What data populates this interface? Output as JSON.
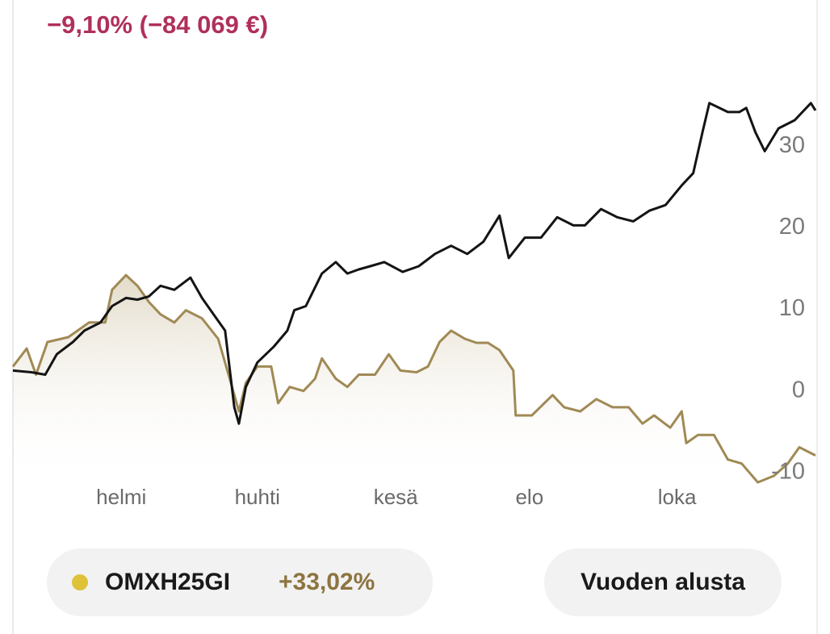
{
  "header": {
    "change": "−9,10% (−84 069 €)"
  },
  "chart_data": {
    "type": "line",
    "xlim": [
      0,
      348
    ],
    "ylim": [
      -11.5,
      42
    ],
    "xticks": [
      {
        "value": 47,
        "label": "helmi"
      },
      {
        "value": 106,
        "label": "huhti"
      },
      {
        "value": 166,
        "label": "kesä"
      },
      {
        "value": 224,
        "label": "elo"
      },
      {
        "value": 288,
        "label": "loka"
      }
    ],
    "yticks": [
      -10,
      0,
      10,
      20,
      30
    ],
    "series": [
      {
        "name": "OMXH25GI",
        "color": "#141414",
        "x": [
          0,
          8,
          14,
          19,
          26,
          31,
          38,
          43,
          49,
          54,
          59,
          64,
          70,
          77,
          82,
          87,
          92,
          96,
          98,
          101,
          106,
          113,
          119,
          122,
          127,
          134,
          140,
          145,
          150,
          155,
          161,
          169,
          176,
          183,
          190,
          197,
          204,
          211,
          215,
          222,
          229,
          236,
          243,
          248,
          255,
          262,
          269,
          276,
          283,
          290,
          295,
          299,
          302,
          310,
          315,
          318,
          322,
          326,
          332,
          339,
          346,
          348
        ],
        "values": [
          2.5,
          2.3,
          2,
          4.5,
          6,
          7.4,
          8.4,
          10.4,
          11.4,
          11.2,
          11.6,
          12.9,
          12.4,
          13.9,
          11.4,
          9.4,
          7.4,
          -2,
          -4,
          0.5,
          3.5,
          5.4,
          7.4,
          9.9,
          10.4,
          14.4,
          15.8,
          14.4,
          14.9,
          15.3,
          15.8,
          14.6,
          15.3,
          16.8,
          17.8,
          16.8,
          18.3,
          21.5,
          16.3,
          18.8,
          18.8,
          21.3,
          20.3,
          20.3,
          22.3,
          21.3,
          20.8,
          22.1,
          22.8,
          25.2,
          26.7,
          31.7,
          35.3,
          34.2,
          34.2,
          34.7,
          31.7,
          29.4,
          32.2,
          33.2,
          35.3,
          34.4
        ]
      },
      {
        "color": "#a08a55",
        "area": true,
        "x": [
          0,
          6,
          10,
          15,
          24,
          33,
          40,
          43,
          49,
          54,
          59,
          64,
          70,
          75,
          82,
          89,
          94,
          98,
          101,
          106,
          112,
          115,
          120,
          126,
          131,
          134,
          140,
          145,
          150,
          157,
          163,
          168,
          175,
          180,
          185,
          190,
          196,
          201,
          206,
          211,
          217,
          218,
          225,
          234,
          239,
          246,
          253,
          260,
          267,
          273,
          278,
          285,
          290,
          292,
          297,
          304,
          310,
          316,
          323,
          330,
          336,
          341,
          348
        ],
        "values": [
          3,
          5.2,
          2,
          6,
          6.6,
          8.4,
          8.4,
          12.4,
          14.2,
          12.9,
          10.9,
          9.4,
          8.4,
          9.9,
          8.9,
          6.4,
          1.5,
          -2.5,
          1,
          3,
          3,
          -1.5,
          0.5,
          0,
          1.5,
          4,
          1.5,
          0.5,
          2,
          2,
          4.5,
          2.5,
          2.3,
          3,
          6,
          7.4,
          6.4,
          5.9,
          5.9,
          5,
          2.5,
          -3,
          -3,
          -0.5,
          -2,
          -2.5,
          -1,
          -2,
          -2,
          -4,
          -3,
          -4.5,
          -2.5,
          -6.4,
          -5.4,
          -5.4,
          -8.4,
          -8.9,
          -11.2,
          -10.4,
          -8.9,
          -6.9,
          -7.9
        ]
      }
    ]
  },
  "legend_chip": {
    "dot_color": "#dfc13a",
    "change": "+33,02%"
  },
  "button": {
    "label": "Vuoden alusta"
  }
}
